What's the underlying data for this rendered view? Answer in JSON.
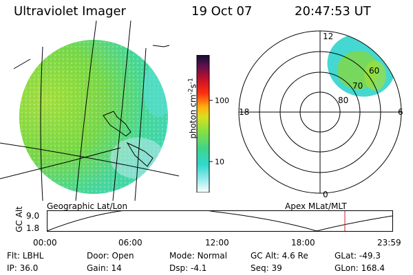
{
  "header": {
    "instrument": "Ultraviolet Imager",
    "date": "19 Oct 07",
    "time": "20:47:53 UT"
  },
  "colorbar": {
    "unit_label": "photon cm",
    "unit_exp_a": "-2",
    "unit_mid": "s",
    "unit_exp_b": "-1",
    "ticks": [
      "100",
      "10"
    ]
  },
  "polar": {
    "hour_labels": {
      "top": "12",
      "left": "18",
      "right": "6",
      "bottom": "0"
    },
    "lat_labels": [
      "60",
      "70",
      "80"
    ]
  },
  "altitude_panel": {
    "left_title": "Geographic Lat/Lon",
    "right_title": "Apex  MLat/MLT",
    "ylabel": "GC Alt",
    "y_ticks": [
      "9.0",
      "1.8"
    ],
    "x_ticks": [
      "00:00",
      "06:00",
      "12:00",
      "18:00",
      "23:59"
    ],
    "current_time_color": "#cc2222"
  },
  "status": {
    "row1": [
      {
        "label": "Flt:",
        "value": "LBHL"
      },
      {
        "label": "Door:",
        "value": "Open"
      },
      {
        "label": "Mode:",
        "value": "Normal"
      },
      {
        "label": "GC Alt:",
        "value": "4.6 Re"
      },
      {
        "label": "GLat:",
        "value": "-49.3"
      }
    ],
    "row2": [
      {
        "label": "IP:",
        "value": "36.0"
      },
      {
        "label": "Gain:",
        "value": "14"
      },
      {
        "label": "Dsp:",
        "value": "-4.1"
      },
      {
        "label": "Seq:",
        "value": "39"
      },
      {
        "label": "GLon:",
        "value": "168.4"
      }
    ]
  },
  "colors": {
    "aurora_cyan": "#40d8d0",
    "aurora_green": "#7ed83c",
    "aurora_yellowgreen": "#a8e030"
  }
}
